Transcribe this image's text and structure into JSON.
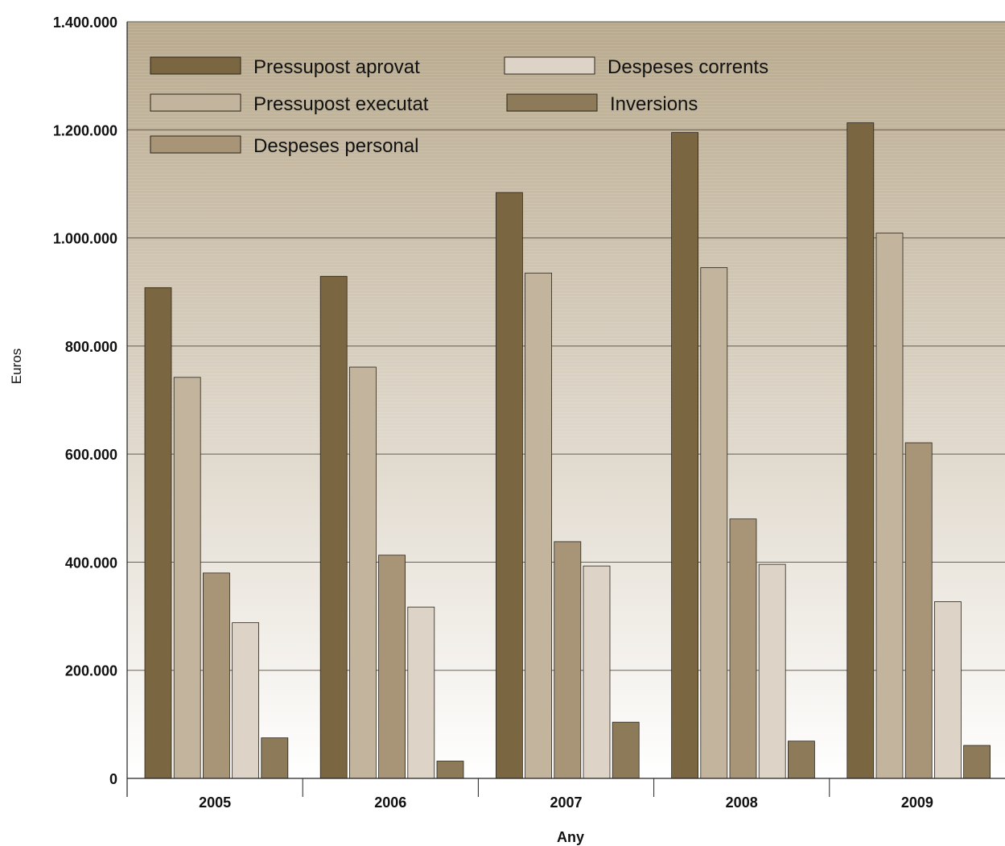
{
  "chart_data": {
    "type": "bar",
    "xlabel": "Any",
    "ylabel": "Euros",
    "ylim": [
      0,
      1400000
    ],
    "yticks": [
      0,
      200000,
      400000,
      600000,
      800000,
      1000000,
      1200000,
      1400000
    ],
    "ytick_labels": [
      "0",
      "200.000",
      "400.000",
      "600.000",
      "800.000",
      "1.000.000",
      "1.200.000",
      "1.400.000"
    ],
    "categories": [
      "2005",
      "2006",
      "2007",
      "2008",
      "2009"
    ],
    "grid": true,
    "legend_position": "top-left",
    "series": [
      {
        "name": "Pressupost aprovat",
        "color": "#7b6642",
        "values": [
          908000,
          929000,
          1084000,
          1195000,
          1213000
        ]
      },
      {
        "name": "Pressupost executat",
        "color": "#c3b49d",
        "values": [
          742000,
          761000,
          935000,
          945000,
          1009000
        ]
      },
      {
        "name": "Despeses personal",
        "color": "#a89577",
        "values": [
          380000,
          413000,
          438000,
          480000,
          621000
        ]
      },
      {
        "name": "Despeses corrents",
        "color": "#ddd3c6",
        "values": [
          288000,
          317000,
          393000,
          396000,
          327000
        ]
      },
      {
        "name": "Inversions",
        "color": "#8d7a59",
        "values": [
          75000,
          32000,
          104000,
          69000,
          61000
        ]
      }
    ]
  }
}
